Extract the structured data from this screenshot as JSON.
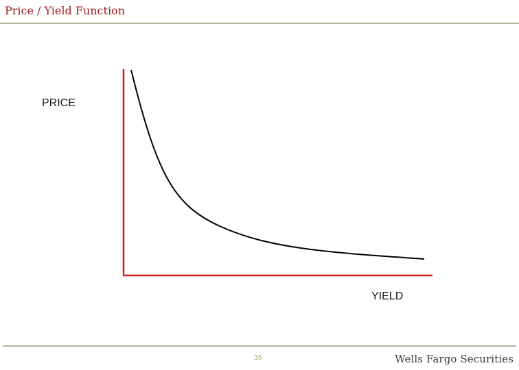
{
  "header": {
    "title": "Price / Yield Function"
  },
  "diagram": {
    "y_axis_label": "PRICE",
    "x_axis_label": "YIELD",
    "axis_color": "#cc1f1f",
    "curve_color": "#000000",
    "curve_shape": "convex, downward-sloping"
  },
  "footer": {
    "page_number": "35",
    "brand": "Wells Fargo Securities",
    "rule_color": "#b9b59c"
  }
}
